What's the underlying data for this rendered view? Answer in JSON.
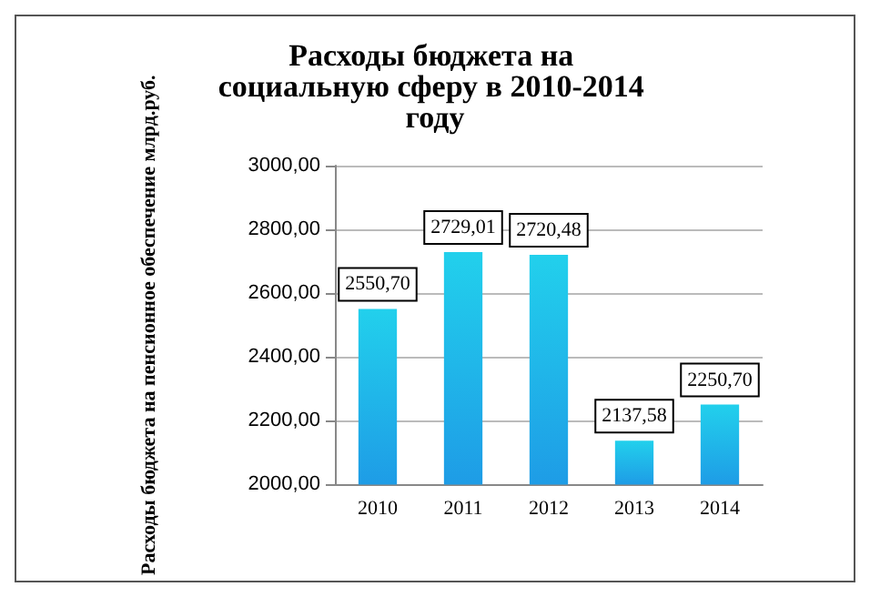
{
  "chart_data": {
    "type": "bar",
    "title": "Расходы бюджета на социальную сферу в 2010-2014 году",
    "ylabel": "Расходы бюджета на пенсионное обеспечение млрд.руб.",
    "categories": [
      "2010",
      "2011",
      "2012",
      "2013",
      "2014"
    ],
    "values": [
      2550.7,
      2729.01,
      2720.48,
      2137.58,
      2250.7
    ],
    "value_labels": [
      "2550,70",
      "2729,01",
      "2720,48",
      "2137,58",
      "2250,70"
    ],
    "color": "#1e9ce6",
    "ylim": [
      2000,
      3000
    ],
    "yticks": [
      {
        "value": 2000,
        "label": "2000,00"
      },
      {
        "value": 2200,
        "label": "2200,00"
      },
      {
        "value": 2400,
        "label": "2400,00"
      },
      {
        "value": 2600,
        "label": "2600,00"
      },
      {
        "value": 2800,
        "label": "2800,00"
      },
      {
        "value": 3000,
        "label": "3000,00"
      }
    ],
    "grid": "y"
  }
}
